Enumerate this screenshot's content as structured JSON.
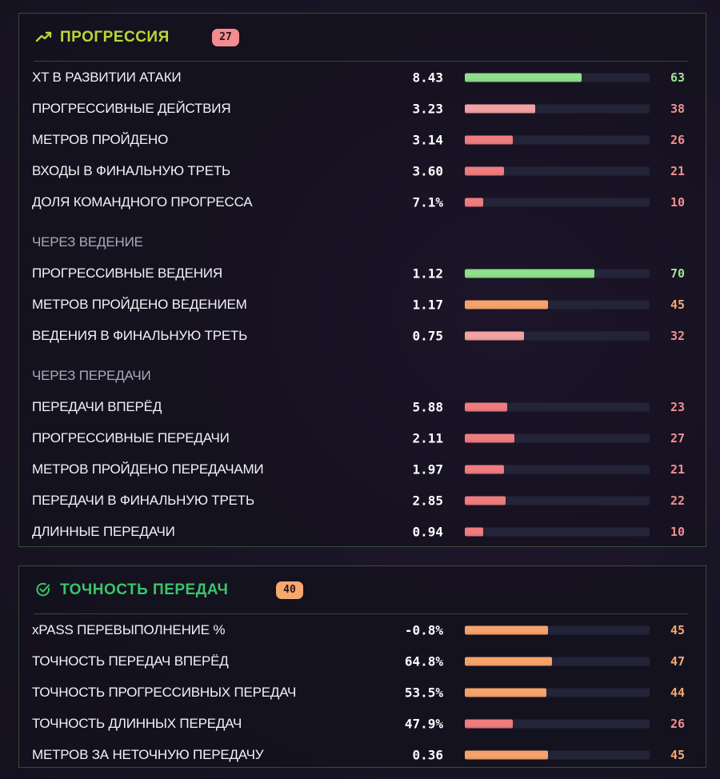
{
  "colors": {
    "green": "#8ee08a",
    "light_red": "#f3a2a4",
    "red": "#ef7c7f",
    "orange": "#f5a36a",
    "green_text": "#9fe39a",
    "red_text": "#f08f91",
    "orange_text": "#f5a96f",
    "title_lime": "#b7d63a",
    "title_green": "#3ac56b"
  },
  "panels": {
    "progression": {
      "title": "ПРОГРЕССИЯ",
      "badge": "27",
      "icon": "trending-up-icon",
      "rows": [
        {
          "kind": "metric",
          "label": "XT В РАЗВИТИИ АТАКИ",
          "value": "8.43",
          "pct": "63",
          "level": 63,
          "color": "green"
        },
        {
          "kind": "metric",
          "label": "ПРОГРЕССИВНЫЕ ДЕЙСТВИЯ",
          "value": "3.23",
          "pct": "38",
          "level": 38,
          "color": "light_red"
        },
        {
          "kind": "metric",
          "label": "МЕТРОВ ПРОЙДЕНО",
          "value": "3.14",
          "pct": "26",
          "level": 26,
          "color": "red"
        },
        {
          "kind": "metric",
          "label": "ВХОДЫ В ФИНАЛЬНУЮ ТРЕТЬ",
          "value": "3.60",
          "pct": "21",
          "level": 21,
          "color": "red"
        },
        {
          "kind": "metric",
          "label": "ДОЛЯ КОМАНДНОГО ПРОГРЕССА",
          "value": "7.1%",
          "pct": "10",
          "level": 10,
          "color": "red"
        },
        {
          "kind": "section",
          "label": "ЧЕРЕЗ ВЕДЕНИЕ"
        },
        {
          "kind": "metric",
          "label": "ПРОГРЕССИВНЫЕ ВЕДЕНИЯ",
          "value": "1.12",
          "pct": "70",
          "level": 70,
          "color": "green"
        },
        {
          "kind": "metric",
          "label": "МЕТРОВ ПРОЙДЕНО ВЕДЕНИЕМ",
          "value": "1.17",
          "pct": "45",
          "level": 45,
          "color": "orange"
        },
        {
          "kind": "metric",
          "label": "ВЕДЕНИЯ В ФИНАЛЬНУЮ ТРЕТЬ",
          "value": "0.75",
          "pct": "32",
          "level": 32,
          "color": "light_red"
        },
        {
          "kind": "section",
          "label": "ЧЕРЕЗ ПЕРЕДАЧИ"
        },
        {
          "kind": "metric",
          "label": "ПЕРЕДАЧИ ВПЕРЁД",
          "value": "5.88",
          "pct": "23",
          "level": 23,
          "color": "red"
        },
        {
          "kind": "metric",
          "label": "ПРОГРЕССИВНЫЕ ПЕРЕДАЧИ",
          "value": "2.11",
          "pct": "27",
          "level": 27,
          "color": "red"
        },
        {
          "kind": "metric",
          "label": "МЕТРОВ ПРОЙДЕНО ПЕРЕДАЧАМИ",
          "value": "1.97",
          "pct": "21",
          "level": 21,
          "color": "red"
        },
        {
          "kind": "metric",
          "label": "ПЕРЕДАЧИ В ФИНАЛЬНУЮ ТРЕТЬ",
          "value": "2.85",
          "pct": "22",
          "level": 22,
          "color": "red"
        },
        {
          "kind": "metric",
          "label": "ДЛИННЫЕ ПЕРЕДАЧИ",
          "value": "0.94",
          "pct": "10",
          "level": 10,
          "color": "red"
        }
      ]
    },
    "accuracy": {
      "title": "ТОЧНОСТЬ ПЕРЕДАЧ",
      "badge": "40",
      "icon": "check-circle-icon",
      "rows": [
        {
          "kind": "metric",
          "label": "xPASS ПЕРЕВЫПОЛНЕНИЕ %",
          "value": "-0.8%",
          "pct": "45",
          "level": 45,
          "color": "orange"
        },
        {
          "kind": "metric",
          "label": "ТОЧНОСТЬ ПЕРЕДАЧ ВПЕРЁД",
          "value": "64.8%",
          "pct": "47",
          "level": 47,
          "color": "orange"
        },
        {
          "kind": "metric",
          "label": "ТОЧНОСТЬ ПРОГРЕССИВНЫХ ПЕРЕДАЧ",
          "value": "53.5%",
          "pct": "44",
          "level": 44,
          "color": "orange"
        },
        {
          "kind": "metric",
          "label": "ТОЧНОСТЬ ДЛИННЫХ ПЕРЕДАЧ",
          "value": "47.9%",
          "pct": "26",
          "level": 26,
          "color": "red"
        },
        {
          "kind": "metric",
          "label": "МЕТРОВ ЗА НЕТОЧНУЮ ПЕРЕДАЧУ",
          "value": "0.36",
          "pct": "45",
          "level": 45,
          "color": "orange"
        }
      ]
    }
  }
}
